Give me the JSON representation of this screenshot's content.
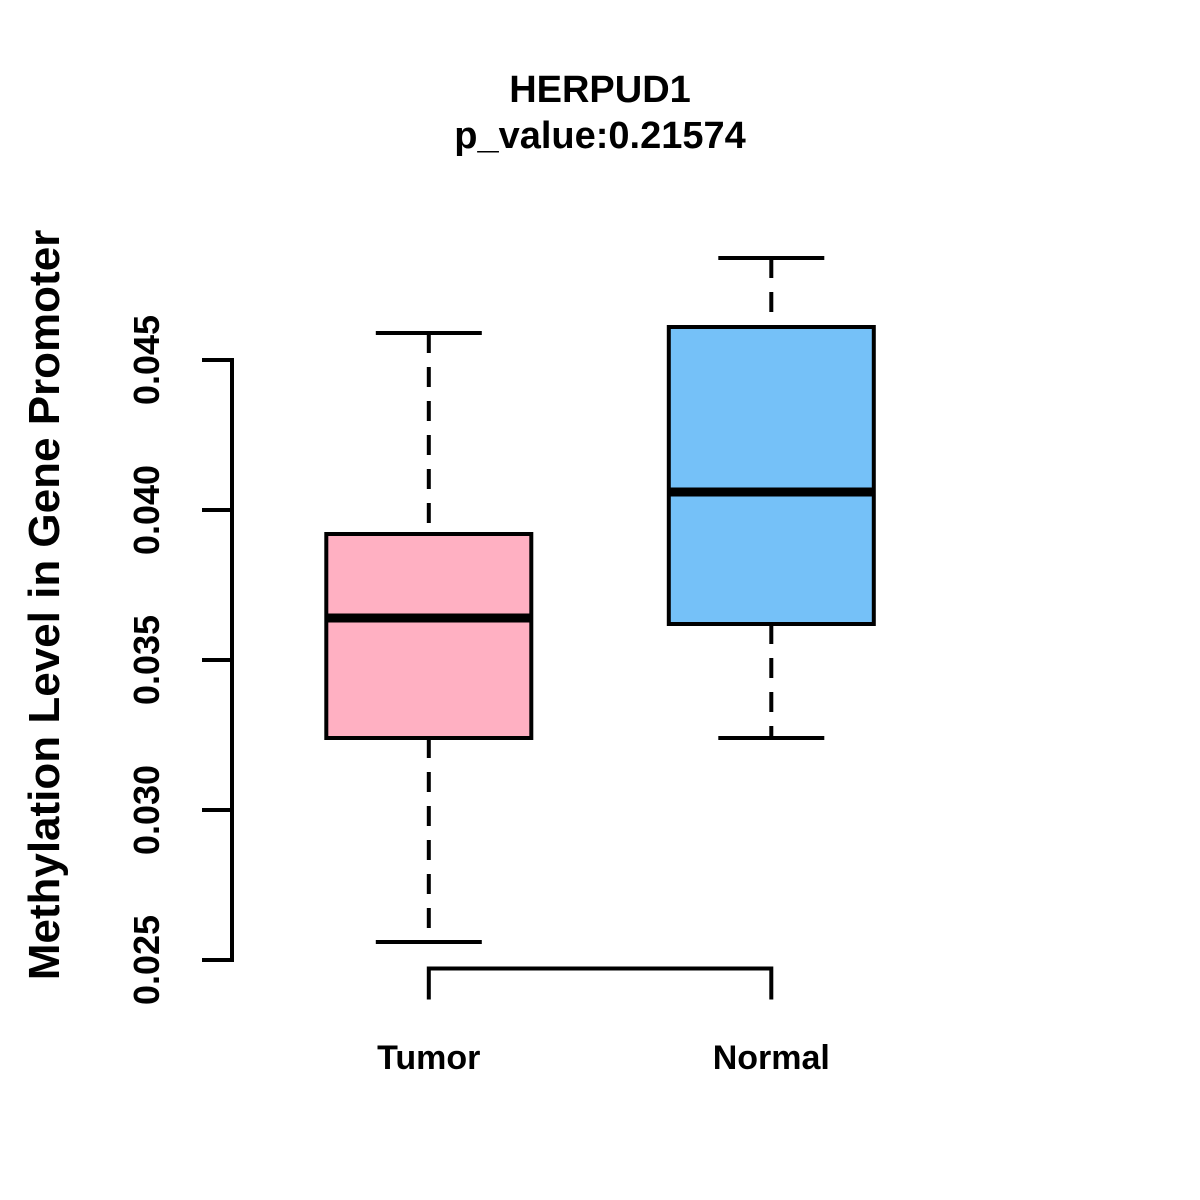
{
  "chart_data": {
    "type": "boxplot",
    "title": "HERPUD1",
    "subtitle": "p_value:0.21574",
    "p_value": "0.21574",
    "gene": "HERPUD1",
    "ylabel": "Methylation Level in Gene Promoter",
    "xlabel": "",
    "categories": [
      "Tumor",
      "Normal"
    ],
    "yticks": [
      "0.025",
      "0.030",
      "0.035",
      "0.040",
      "0.045"
    ],
    "ylim": [
      0.025,
      0.045
    ],
    "grid": false,
    "legend_position": "none",
    "series": [
      {
        "name": "Tumor",
        "color": "#FFB0C2",
        "whisker_low": 0.0256,
        "q1": 0.0324,
        "median": 0.0364,
        "q3": 0.0392,
        "whisker_high": 0.0459
      },
      {
        "name": "Normal",
        "color": "#75C1F8",
        "whisker_low": 0.0324,
        "q1": 0.0362,
        "median": 0.0406,
        "q3": 0.0461,
        "whisker_high": 0.0484
      }
    ],
    "line_color": "#000000"
  }
}
